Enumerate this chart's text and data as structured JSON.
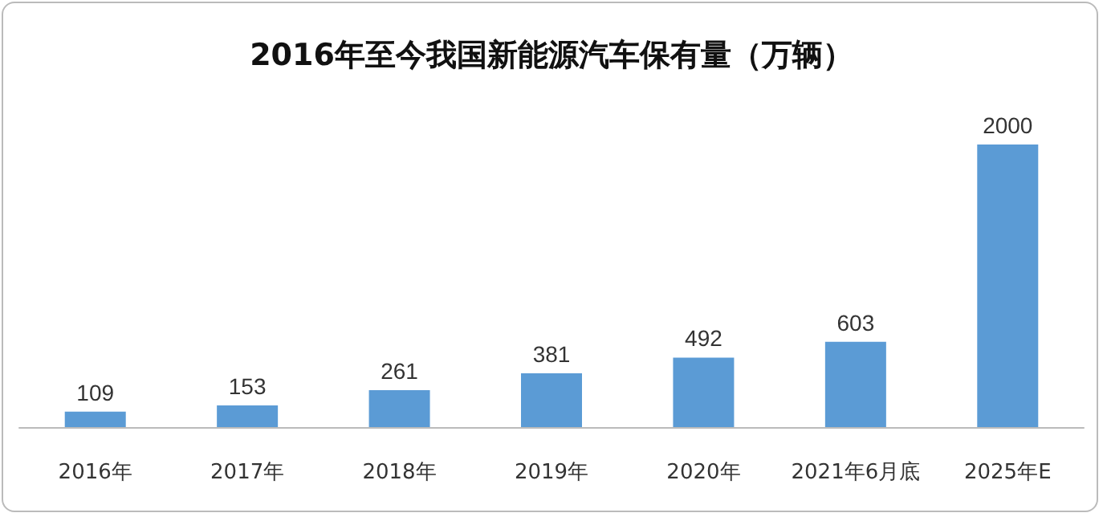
{
  "chart_data": {
    "type": "bar",
    "title": "2016年至今我国新能源汽车保有量（万辆）",
    "categories": [
      "2016年",
      "2017年",
      "2018年",
      "2019年",
      "2020年",
      "2021年6月底",
      "2025年E"
    ],
    "values": [
      109,
      153,
      261,
      381,
      492,
      603,
      2000
    ],
    "color": "#5b9bd5",
    "data_labels": true,
    "tick_labels": "x",
    "grid": false
  }
}
